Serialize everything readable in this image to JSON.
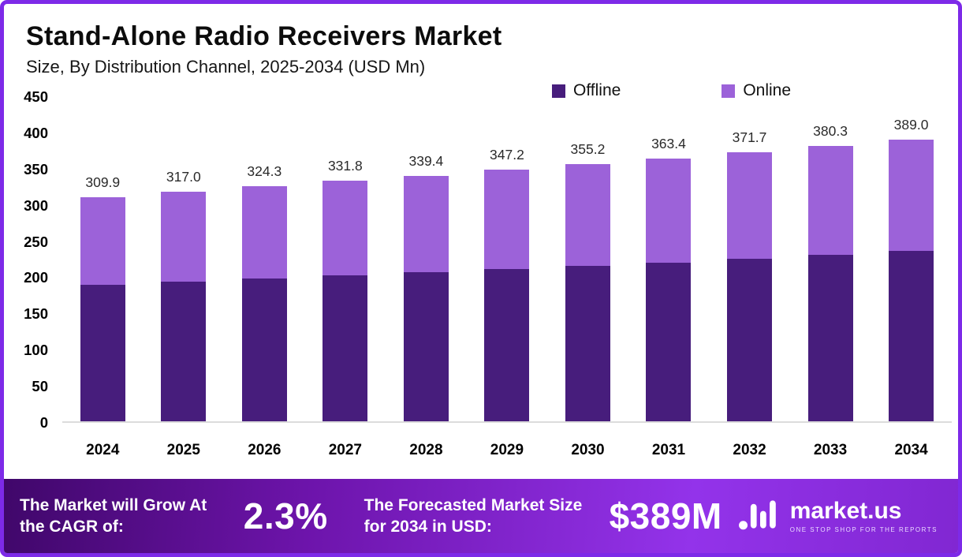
{
  "header": {
    "title": "Stand-Alone Radio Receivers Market",
    "subtitle": "Size, By Distribution Channel, 2025-2034 (USD Mn)"
  },
  "legend": [
    {
      "label": "Offline",
      "color": "#471d7c"
    },
    {
      "label": "Online",
      "color": "#9c62d9"
    }
  ],
  "chart_data": {
    "type": "bar",
    "stacked": true,
    "title": "Stand-Alone Radio Receivers Market",
    "subtitle": "Size, By Distribution Channel, 2025-2034 (USD Mn)",
    "categories": [
      "2024",
      "2025",
      "2026",
      "2027",
      "2028",
      "2029",
      "2030",
      "2031",
      "2032",
      "2033",
      "2034"
    ],
    "series": [
      {
        "name": "Offline",
        "color": "#471d7c",
        "values": [
          188.0,
          193.0,
          197.0,
          202.0,
          206.0,
          210.0,
          215.0,
          219.0,
          225.0,
          230.0,
          235.0
        ]
      },
      {
        "name": "Online",
        "color": "#9c62d9",
        "values": [
          121.9,
          124.0,
          127.3,
          129.8,
          133.4,
          137.2,
          140.2,
          144.4,
          146.7,
          150.3,
          154.0
        ]
      }
    ],
    "totals": [
      309.9,
      317.0,
      324.3,
      331.8,
      339.4,
      347.2,
      355.2,
      363.4,
      371.7,
      380.3,
      389.0
    ],
    "total_labels": [
      "309.9",
      "317.0",
      "324.3",
      "331.8",
      "339.4",
      "347.2",
      "355.2",
      "363.4",
      "371.7",
      "380.3",
      "389.0"
    ],
    "xlabel": "",
    "ylabel": "",
    "ylim": [
      0,
      450
    ],
    "yticks": [
      0,
      50,
      100,
      150,
      200,
      250,
      300,
      350,
      400,
      450
    ],
    "grid": false,
    "legend_position": "top"
  },
  "footer": {
    "cagr_label": "The Market will Grow At the CAGR of:",
    "cagr_value": "2.3%",
    "forecast_label": "The Forecasted Market Size for 2034 in USD:",
    "forecast_value": "$389M",
    "brand": "market.us",
    "brand_tagline": "ONE STOP SHOP FOR THE REPORTS"
  },
  "colors": {
    "frame_border": "#7d2ae8",
    "offline": "#471d7c",
    "online": "#9c62d9",
    "banner_gradient_start": "#40076a",
    "banner_gradient_end": "#9333ea"
  }
}
